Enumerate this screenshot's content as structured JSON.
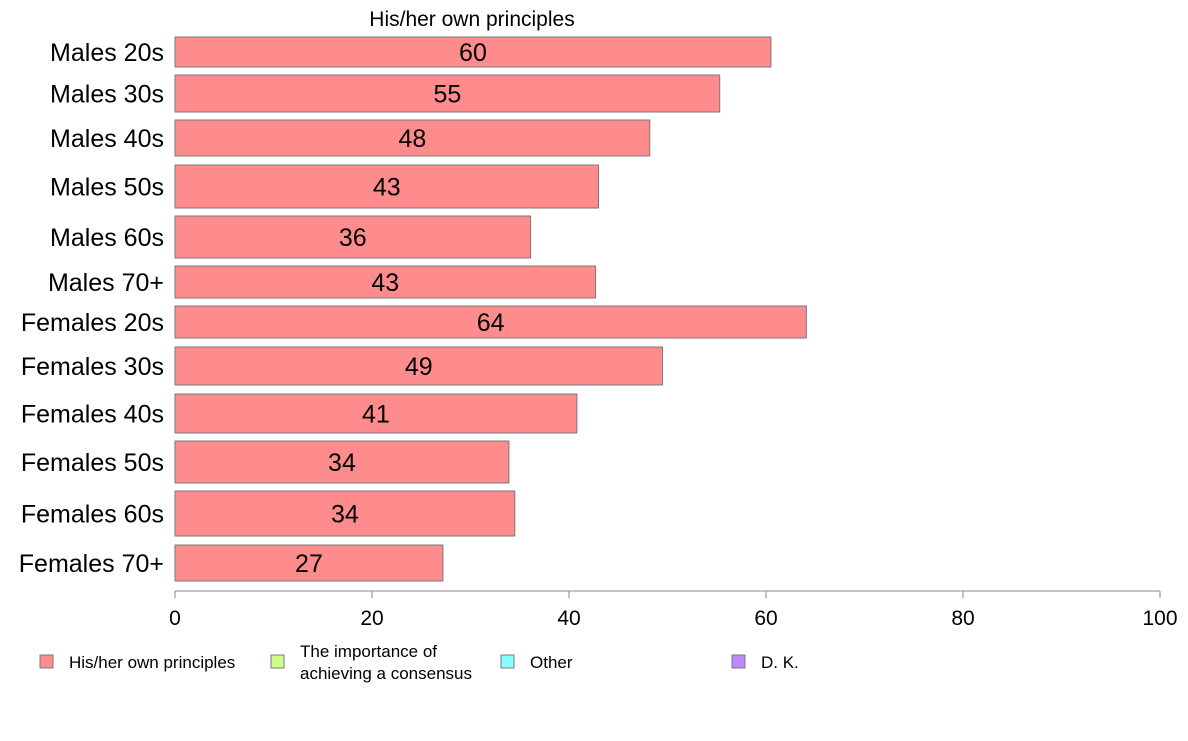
{
  "chart_data": {
    "type": "bar",
    "orientation": "horizontal",
    "title": "His/her own principles",
    "xlabel": "",
    "ylabel": "",
    "xlim": [
      0,
      100
    ],
    "x_ticks": [
      "0",
      "20",
      "40",
      "60",
      "80",
      "100"
    ],
    "grid": false,
    "legend_position": "bottom",
    "categories": [
      "Males 20s",
      "Males 30s",
      "Males 40s",
      "Males 50s",
      "Males 60s",
      "Males 70+",
      "Females 20s",
      "Females 30s",
      "Females 40s",
      "Females 50s",
      "Females 60s",
      "Females 70+"
    ],
    "series": [
      {
        "name": "His/her own principles",
        "color": "#ff8c8c",
        "values": [
          60.5,
          55.3,
          48.2,
          43.0,
          36.1,
          42.7,
          64.1,
          49.5,
          40.8,
          33.9,
          34.5,
          27.2
        ],
        "labels": [
          "60",
          "55",
          "48",
          "43",
          "36",
          "43",
          "64",
          "49",
          "41",
          "34",
          "34",
          "27"
        ]
      }
    ],
    "legend": [
      {
        "label": "His/her own principles",
        "color": "#ff8c8c"
      },
      {
        "label_lines": [
          "The importance of",
          "achieving a consensus"
        ],
        "color": "#ccff88"
      },
      {
        "label": "Other",
        "color": "#88ffff"
      },
      {
        "label": "D. K.",
        "color": "#bb88ff"
      }
    ]
  }
}
